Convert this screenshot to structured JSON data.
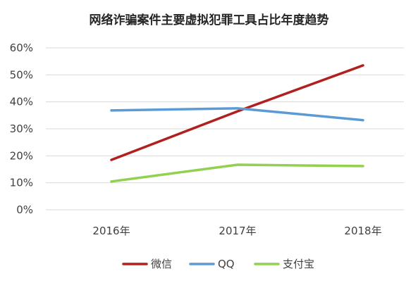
{
  "chart_data": {
    "type": "line",
    "title": "网络诈骗案件主要虚拟犯罪工具占比年度趋势",
    "categories": [
      "2016年",
      "2017年",
      "2018年"
    ],
    "ylim": [
      0,
      60
    ],
    "yticks": [
      "0%",
      "10%",
      "20%",
      "30%",
      "40%",
      "50%",
      "60%"
    ],
    "y_tick_values": [
      0,
      10,
      20,
      30,
      40,
      50,
      60
    ],
    "grid": true,
    "legend_position": "bottom",
    "series": [
      {
        "name": "微信",
        "values": [
          18.5,
          36.5,
          53.5
        ],
        "color": "#b21f1f"
      },
      {
        "name": "QQ",
        "values": [
          36.8,
          37.6,
          33.2
        ],
        "color": "#5b9bd5"
      },
      {
        "name": "支付宝",
        "values": [
          10.5,
          16.7,
          16.2
        ],
        "color": "#92d050"
      }
    ],
    "gridline_color": "#d9d9d9"
  }
}
